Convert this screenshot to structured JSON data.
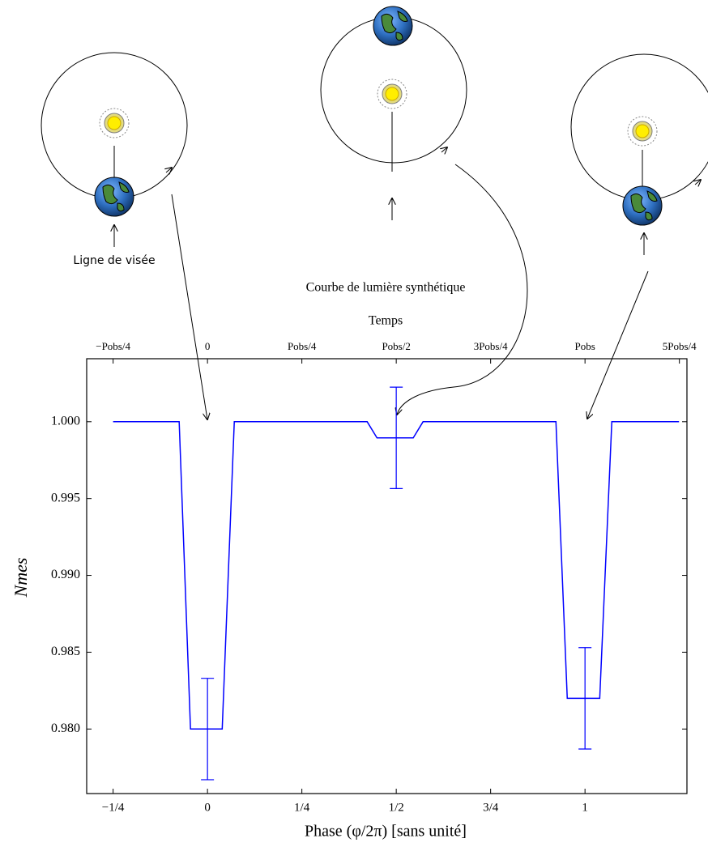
{
  "chart_data": {
    "type": "line",
    "title": "Courbe de lumière synthétique",
    "x2label": "Temps",
    "ylabel": "Nmes",
    "xlabel": "Phase (φ/2π) [sans unité]",
    "annotation": "Ligne de visée",
    "xlim": [
      -0.32,
      1.27
    ],
    "ylim": [
      0.9758,
      1.0041
    ],
    "xticks": [
      {
        "value": -0.25,
        "label": "−1/4"
      },
      0,
      {
        "value": 0.25,
        "label": "1/4"
      },
      {
        "value": 0.5,
        "label": "1/2"
      },
      {
        "value": 0.75,
        "label": "3/4"
      },
      1
    ],
    "x2ticks": [
      {
        "value": -0.25,
        "label": "−Pobs/4"
      },
      0,
      {
        "value": 0.25,
        "label": "Pobs/4"
      },
      {
        "value": 0.5,
        "label": "Pobs/2"
      },
      {
        "value": 0.75,
        "label": "3Pobs/4"
      },
      {
        "value": 1,
        "label": "Pobs"
      },
      {
        "value": 1.25,
        "label": "5Pobs/4"
      }
    ],
    "yticks": [
      {
        "value": 0.98,
        "label": "0.980"
      },
      0.985,
      {
        "value": 0.99,
        "label": "0.990"
      },
      0.995,
      {
        "value": 1,
        "label": "1.000"
      }
    ],
    "series": [
      {
        "name": "Nmes",
        "color": "#0000ff",
        "x": [
          -0.25,
          -0.075,
          -0.045,
          0.039,
          0.071,
          0.423,
          0.449,
          0.545,
          0.571,
          0.923,
          0.953,
          1.039,
          1.071,
          1.249
        ],
        "values": [
          1.0,
          1.0,
          0.98,
          0.98,
          1.0,
          1.0,
          0.99895,
          0.99895,
          1.0,
          1.0,
          0.982,
          0.982,
          1.0,
          1.0
        ]
      }
    ],
    "errorbars": {
      "x": [
        0,
        0.5,
        1
      ],
      "values": [
        0.98,
        0.99895,
        0.982
      ],
      "errors": [
        0.0033,
        0.0033,
        0.0033
      ],
      "color": "#0000ff"
    }
  }
}
